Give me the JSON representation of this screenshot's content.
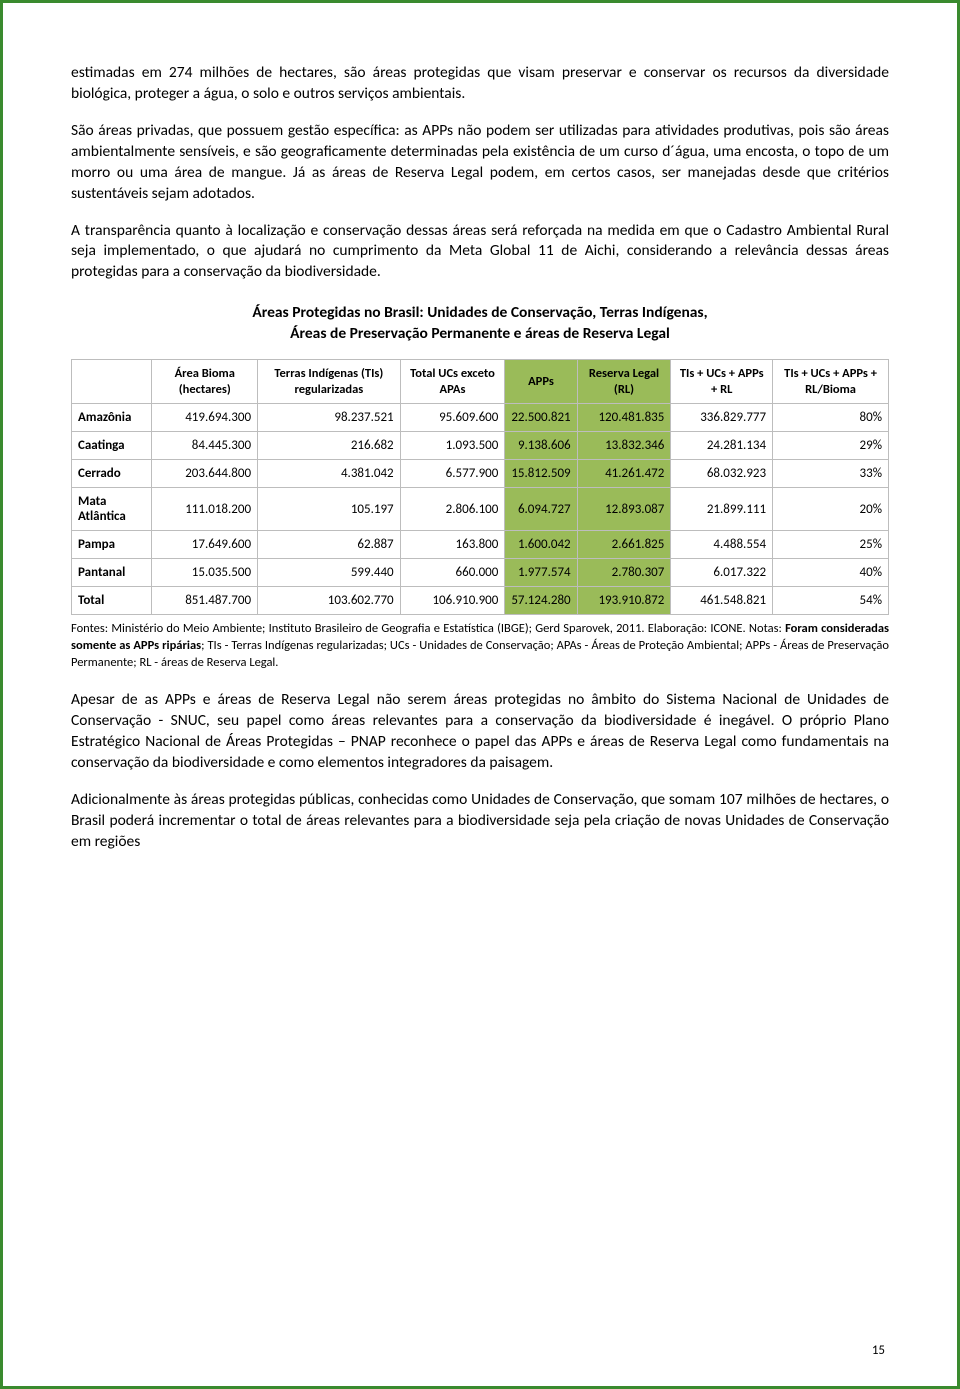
{
  "para1": "estimadas em 274 milhões de hectares, são áreas protegidas que visam preservar e conservar os recursos da diversidade biológica, proteger a água, o solo e outros serviços ambientais.",
  "para2": "São áreas privadas, que possuem gestão específica: as APPs não podem ser utilizadas para atividades produtivas, pois são áreas ambientalmente sensíveis, e são geograficamente determinadas pela existência de um curso d´água, uma encosta, o topo de um morro ou uma área de mangue. Já as áreas de Reserva Legal podem, em certos casos, ser manejadas desde que critérios sustentáveis sejam adotados.",
  "para3": "A transparência quanto à localização e conservação dessas áreas será reforçada na medida em que o Cadastro Ambiental Rural seja implementado, o que ajudará no cumprimento da Meta Global 11 de Aichi, considerando a relevância dessas áreas protegidas para a conservação da biodiversidade.",
  "tableTitle1": "Áreas Protegidas no Brasil: Unidades de Conservação, Terras Indígenas,",
  "tableTitle2": "Áreas de Preservação Permanente e áreas de Reserva Legal",
  "headers": {
    "c1": "Área Bioma (hectares)",
    "c2": "Terras Indígenas (TIs) regularizadas",
    "c3": "Total UCs exceto APAs",
    "c4": "APPs",
    "c5": "Reserva Legal (RL)",
    "c6": "TIs + UCs + APPs + RL",
    "c7": "TIs + UCs + APPs + RL/Bioma"
  },
  "rows": [
    {
      "label": "Amazônia",
      "c1": "419.694.300",
      "c2": "98.237.521",
      "c3": "95.609.600",
      "c4": "22.500.821",
      "c5": "120.481.835",
      "c6": "336.829.777",
      "c7": "80%"
    },
    {
      "label": "Caatinga",
      "c1": "84.445.300",
      "c2": "216.682",
      "c3": "1.093.500",
      "c4": "9.138.606",
      "c5": "13.832.346",
      "c6": "24.281.134",
      "c7": "29%"
    },
    {
      "label": "Cerrado",
      "c1": "203.644.800",
      "c2": "4.381.042",
      "c3": "6.577.900",
      "c4": "15.812.509",
      "c5": "41.261.472",
      "c6": "68.032.923",
      "c7": "33%"
    },
    {
      "label": "Mata Atlântica",
      "c1": "111.018.200",
      "c2": "105.197",
      "c3": "2.806.100",
      "c4": "6.094.727",
      "c5": "12.893.087",
      "c6": "21.899.111",
      "c7": "20%"
    },
    {
      "label": "Pampa",
      "c1": "17.649.600",
      "c2": "62.887",
      "c3": "163.800",
      "c4": "1.600.042",
      "c5": "2.661.825",
      "c6": "4.488.554",
      "c7": "25%"
    },
    {
      "label": "Pantanal",
      "c1": "15.035.500",
      "c2": "599.440",
      "c3": "660.000",
      "c4": "1.977.574",
      "c5": "2.780.307",
      "c6": "6.017.322",
      "c7": "40%"
    },
    {
      "label": "Total",
      "c1": "851.487.700",
      "c2": "103.602.770",
      "c3": "106.910.900",
      "c4": "57.124.280",
      "c5": "193.910.872",
      "c6": "461.548.821",
      "c7": "54%"
    }
  ],
  "footnote_plain1": "Fontes: Ministério do Meio Ambiente; Instituto Brasileiro de Geografia e Estatística (IBGE); Gerd Sparovek, 2011. Elaboração: ICONE. Notas: ",
  "footnote_bold": "Foram consideradas somente as APPs ripárias",
  "footnote_plain2": "; TIs - Terras Indígenas regularizadas; UCs - Unidades de Conservação; APAs - Áreas de Proteção Ambiental; APPs - Áreas de Preservação Permanente; RL - áreas de Reserva Legal.",
  "para4": "Apesar de as APPs e áreas de Reserva Legal não serem áreas protegidas no âmbito do Sistema Nacional de Unidades de Conservação - SNUC, seu papel como áreas relevantes para a conservação da biodiversidade é inegável. O próprio Plano Estratégico Nacional de Áreas Protegidas – PNAP reconhece o papel das APPs e áreas de Reserva Legal como fundamentais na conservação da biodiversidade e como elementos integradores da paisagem.",
  "para5": "Adicionalmente às áreas protegidas públicas, conhecidas como Unidades de Conservação, que somam 107 milhões de hectares, o Brasil poderá incrementar o total de áreas relevantes para a biodiversidade seja pela criação de novas Unidades de Conservação em regiões",
  "pageNumber": "15",
  "style": {
    "highlight_bg": "#9abb59",
    "border_color": "#3a8a2e",
    "cell_border": "#bdbdbd",
    "body_font_size": 15.5,
    "table_font_size": 13,
    "footnote_font_size": 12.5
  }
}
